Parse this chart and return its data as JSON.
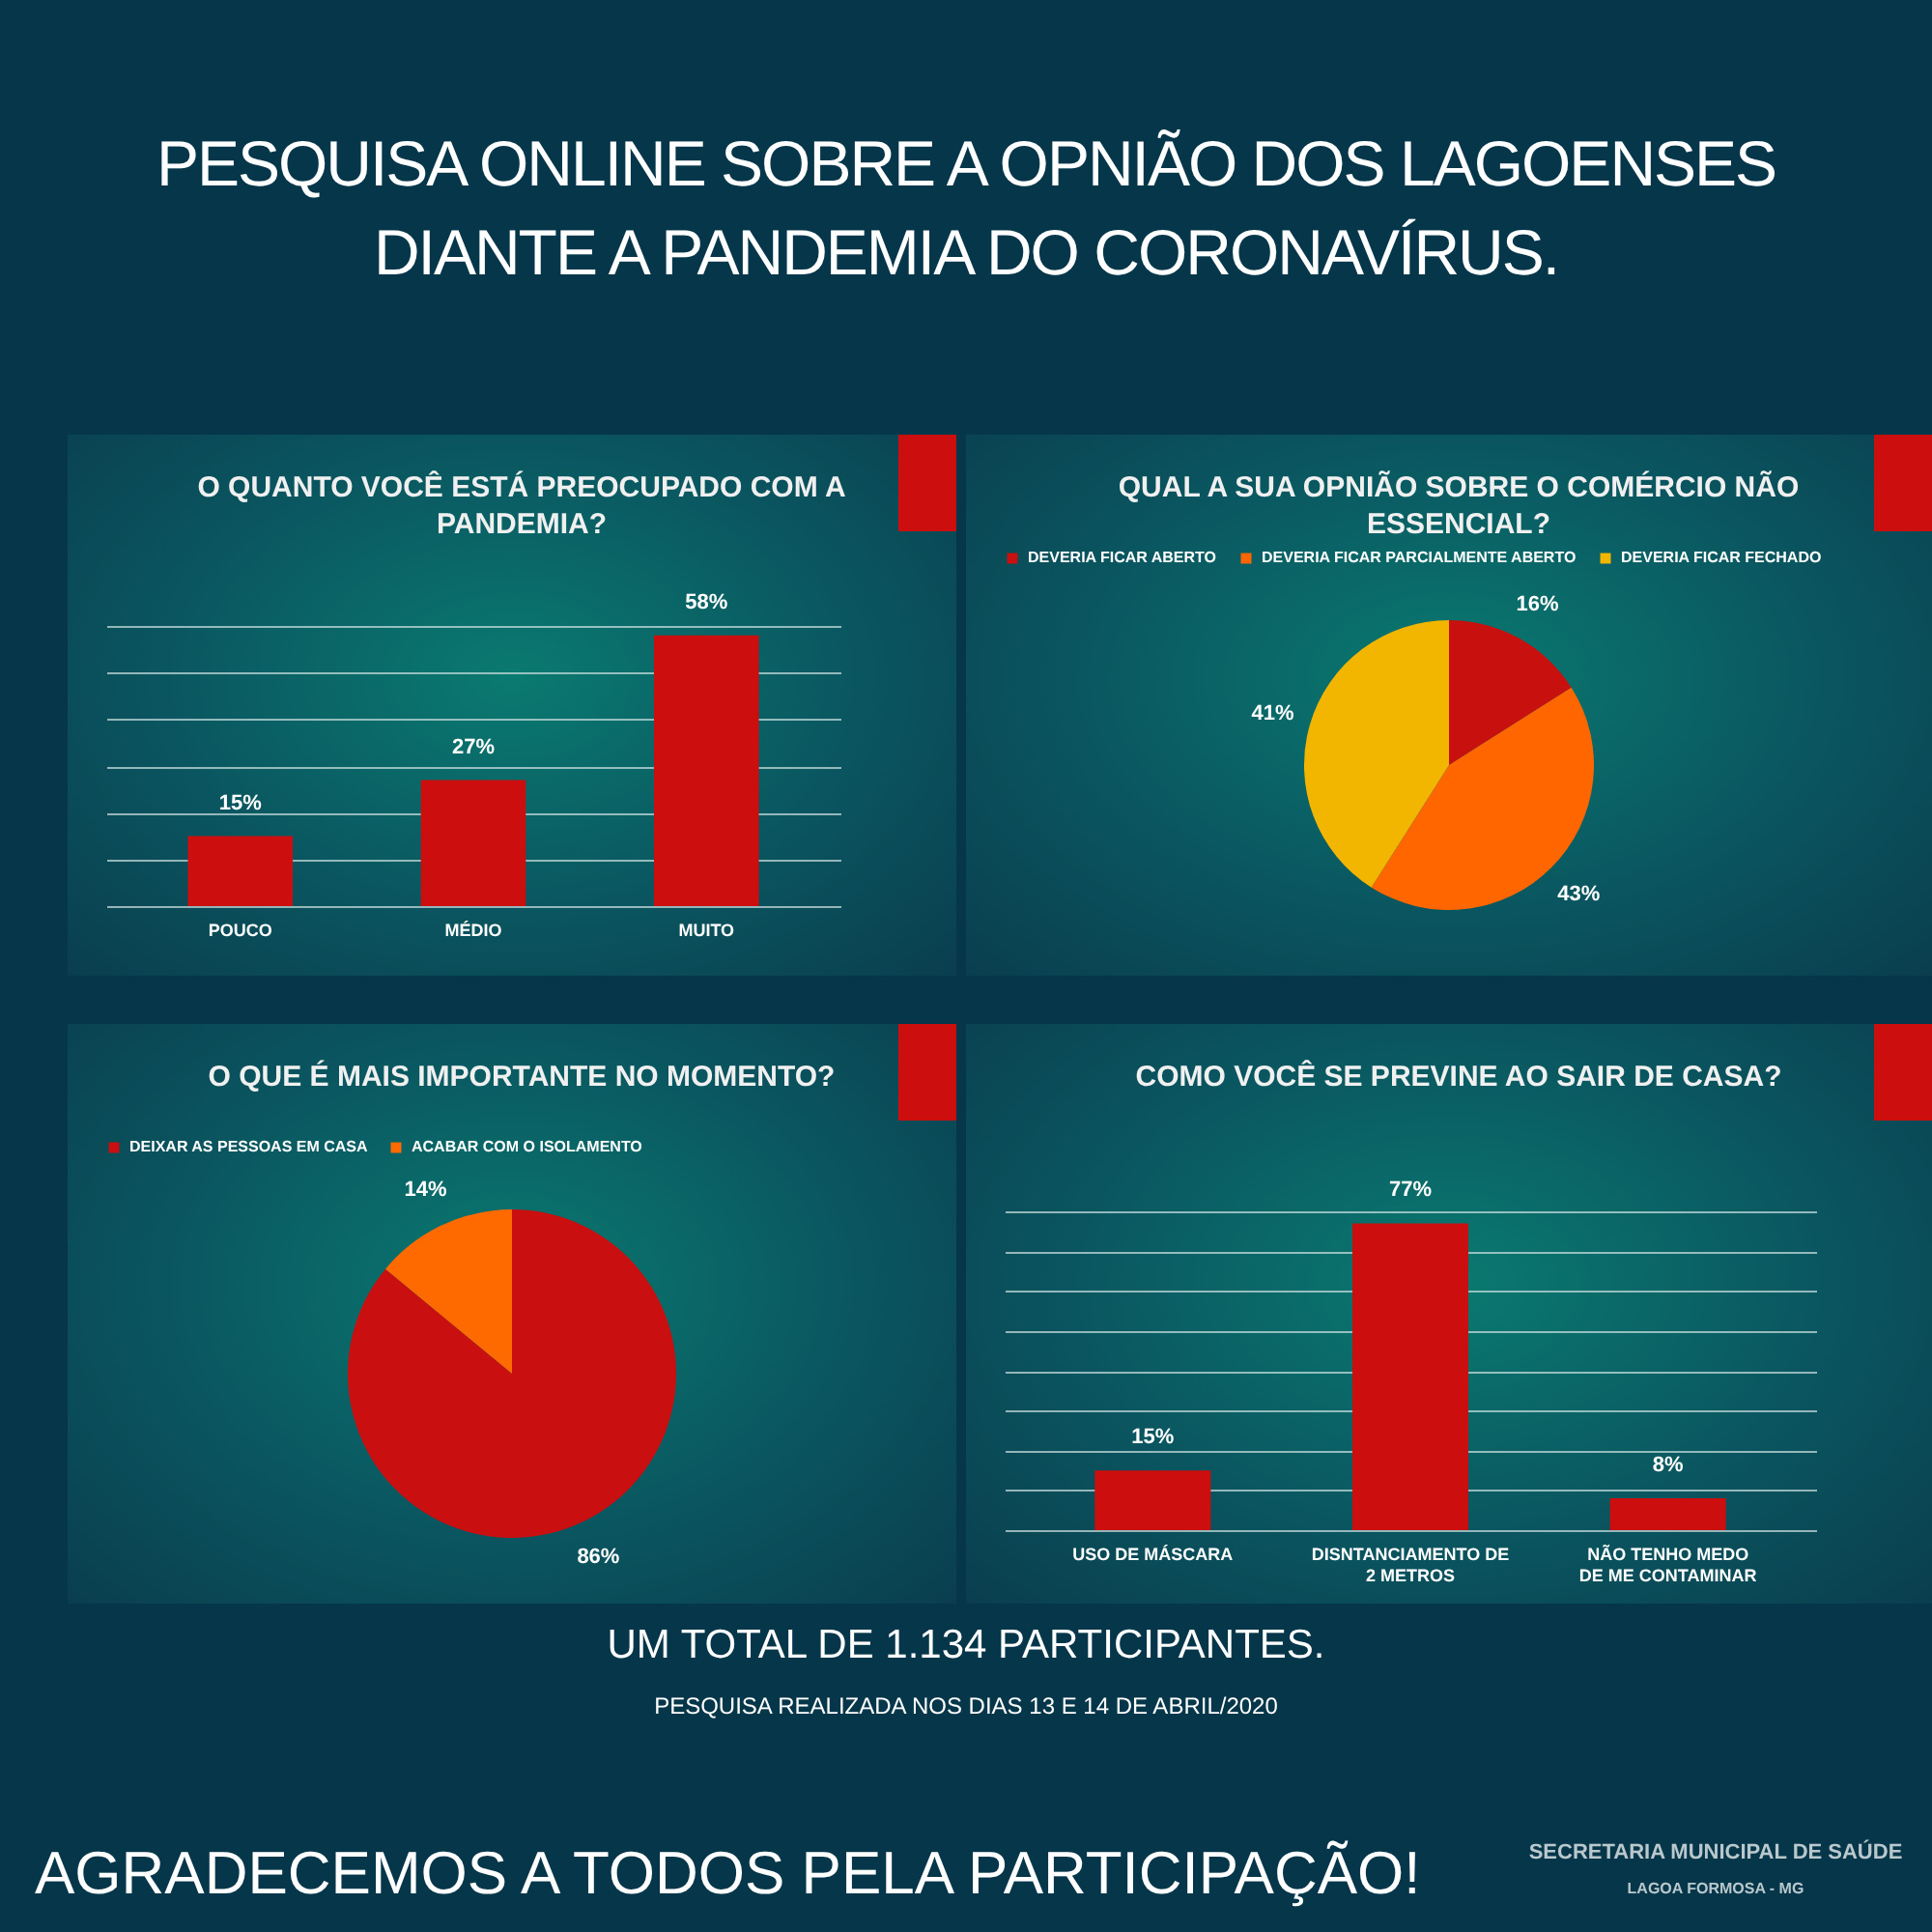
{
  "chart_data": [
    {
      "type": "other",
      "title": "PESQUISA ONLINE SOBRE A OPNIÃO DOS LAGOENSES DIANTE A PANDEMIA DO CORONAVÍRUS."
    },
    {
      "type": "bar",
      "title": "O QUANTO VOCÊ ESTÁ PREOCUPADO COM A PANDEMIA?",
      "categories": [
        "POUCO",
        "MÉDIO",
        "MUITO"
      ],
      "values": [
        15,
        27,
        58
      ],
      "value_labels": [
        "15%",
        "27%",
        "58%"
      ],
      "color": "#cc0e0e",
      "ylim": [
        0,
        60
      ],
      "yticks": [
        {
          "value": 0,
          "label": null
        },
        {
          "value": 10,
          "label": null
        },
        {
          "value": 20,
          "label": null
        },
        {
          "value": 30,
          "label": null
        },
        {
          "value": 40,
          "label": null
        },
        {
          "value": 50,
          "label": null
        },
        {
          "value": 60,
          "label": null
        }
      ],
      "grid": "y",
      "tick_labels": "x"
    },
    {
      "type": "pie",
      "title": "QUAL A SUA OPNIÃO SOBRE O COMÉRCIO NÃO ESSENCIAL?",
      "categories": [
        "DEVERIA FICAR ABERTO",
        "DEVERIA FICAR PARCIALMENTE ABERTO",
        "DEVERIA FICAR FECHADO"
      ],
      "values": [
        16,
        43,
        41
      ],
      "value_labels": [
        "16%",
        "43%",
        "41%"
      ],
      "colors": [
        "#c8100f",
        "#ff6600",
        "#f2b600"
      ],
      "legend": "top"
    },
    {
      "type": "pie",
      "title": "O QUE É MAIS IMPORTANTE NO MOMENTO?",
      "categories": [
        "DEIXAR AS PESSOAS EM CASA",
        "ACABAR COM O ISOLAMENTO"
      ],
      "values": [
        86,
        14
      ],
      "value_labels": [
        "86%",
        "14%"
      ],
      "colors": [
        "#c90f0f",
        "#ff6a00"
      ],
      "legend": "top"
    },
    {
      "type": "bar",
      "title": "COMO VOCÊ SE PREVINE AO SAIR DE CASA?",
      "categories": [
        "USO DE MÁSCARA",
        "DISNTANCIAMENTO DE 2 METROS",
        "NÃO TENHO MEDO DE ME CONTAMINAR"
      ],
      "values": [
        15,
        77,
        8
      ],
      "value_labels": [
        "15%",
        "77%",
        "8%"
      ],
      "color": "#cc0e0e",
      "ylim": [
        0,
        80
      ],
      "yticks": [
        {
          "value": 0,
          "label": null
        },
        {
          "value": 10,
          "label": null
        },
        {
          "value": 20,
          "label": null
        },
        {
          "value": 30,
          "label": null
        },
        {
          "value": 40,
          "label": null
        },
        {
          "value": 50,
          "label": null
        },
        {
          "value": 60,
          "label": null
        },
        {
          "value": 70,
          "label": null
        },
        {
          "value": 80,
          "label": null
        }
      ],
      "grid": "y",
      "tick_labels": "x"
    },
    {
      "type": "other",
      "annotations": [
        "UM TOTAL DE 1.134 PARTICIPANTES.",
        "PESQUISA REALIZADA NOS DIAS 13 E 14 DE ABRIL/2020",
        "AGRADECEMOS A TODOS PELA PARTICIPAÇÃO!",
        "SECRETARIA MUNICIPAL DE SAÚDE",
        "LAGOA FORMOSA - MG"
      ]
    }
  ]
}
